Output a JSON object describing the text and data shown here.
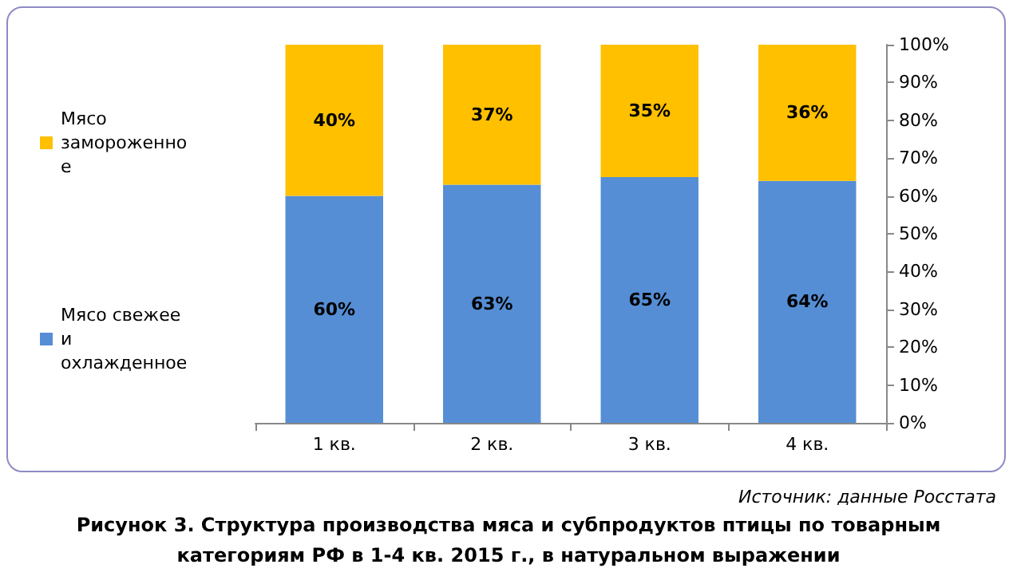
{
  "chart_data": {
    "type": "bar",
    "stacked": true,
    "title": "Рисунок 3. Структура производства мяса и субпродуктов птицы по товарным категориям РФ в 1-4 кв. 2015 г., в натуральном выражении",
    "annotations": [
      "Источник: данные Росстата"
    ],
    "categories": [
      "1 кв.",
      "2 кв.",
      "3 кв.",
      "4 кв."
    ],
    "series": [
      {
        "name": "Мясо свежее и охлажденное",
        "color": "#558ed5",
        "values": [
          60,
          63,
          65,
          64
        ],
        "value_labels": [
          "60%",
          "63%",
          "65%",
          "64%"
        ]
      },
      {
        "name": "Мясо замороженное",
        "color": "#ffc000",
        "values": [
          40,
          37,
          35,
          36
        ],
        "value_labels": [
          "40%",
          "37%",
          "35%",
          "36%"
        ]
      }
    ],
    "ylim": [
      0,
      100
    ],
    "yticks": [
      {
        "value": 0,
        "label": "0%"
      },
      {
        "value": 10,
        "label": "10%"
      },
      {
        "value": 20,
        "label": "20%"
      },
      {
        "value": 30,
        "label": "30%"
      },
      {
        "value": 40,
        "label": "40%"
      },
      {
        "value": 50,
        "label": "50%"
      },
      {
        "value": 60,
        "label": "60%"
      },
      {
        "value": 70,
        "label": "70%"
      },
      {
        "value": 80,
        "label": "80%"
      },
      {
        "value": 90,
        "label": "90%"
      },
      {
        "value": 100,
        "label": "100%"
      }
    ],
    "grid": false,
    "legend": "left"
  }
}
